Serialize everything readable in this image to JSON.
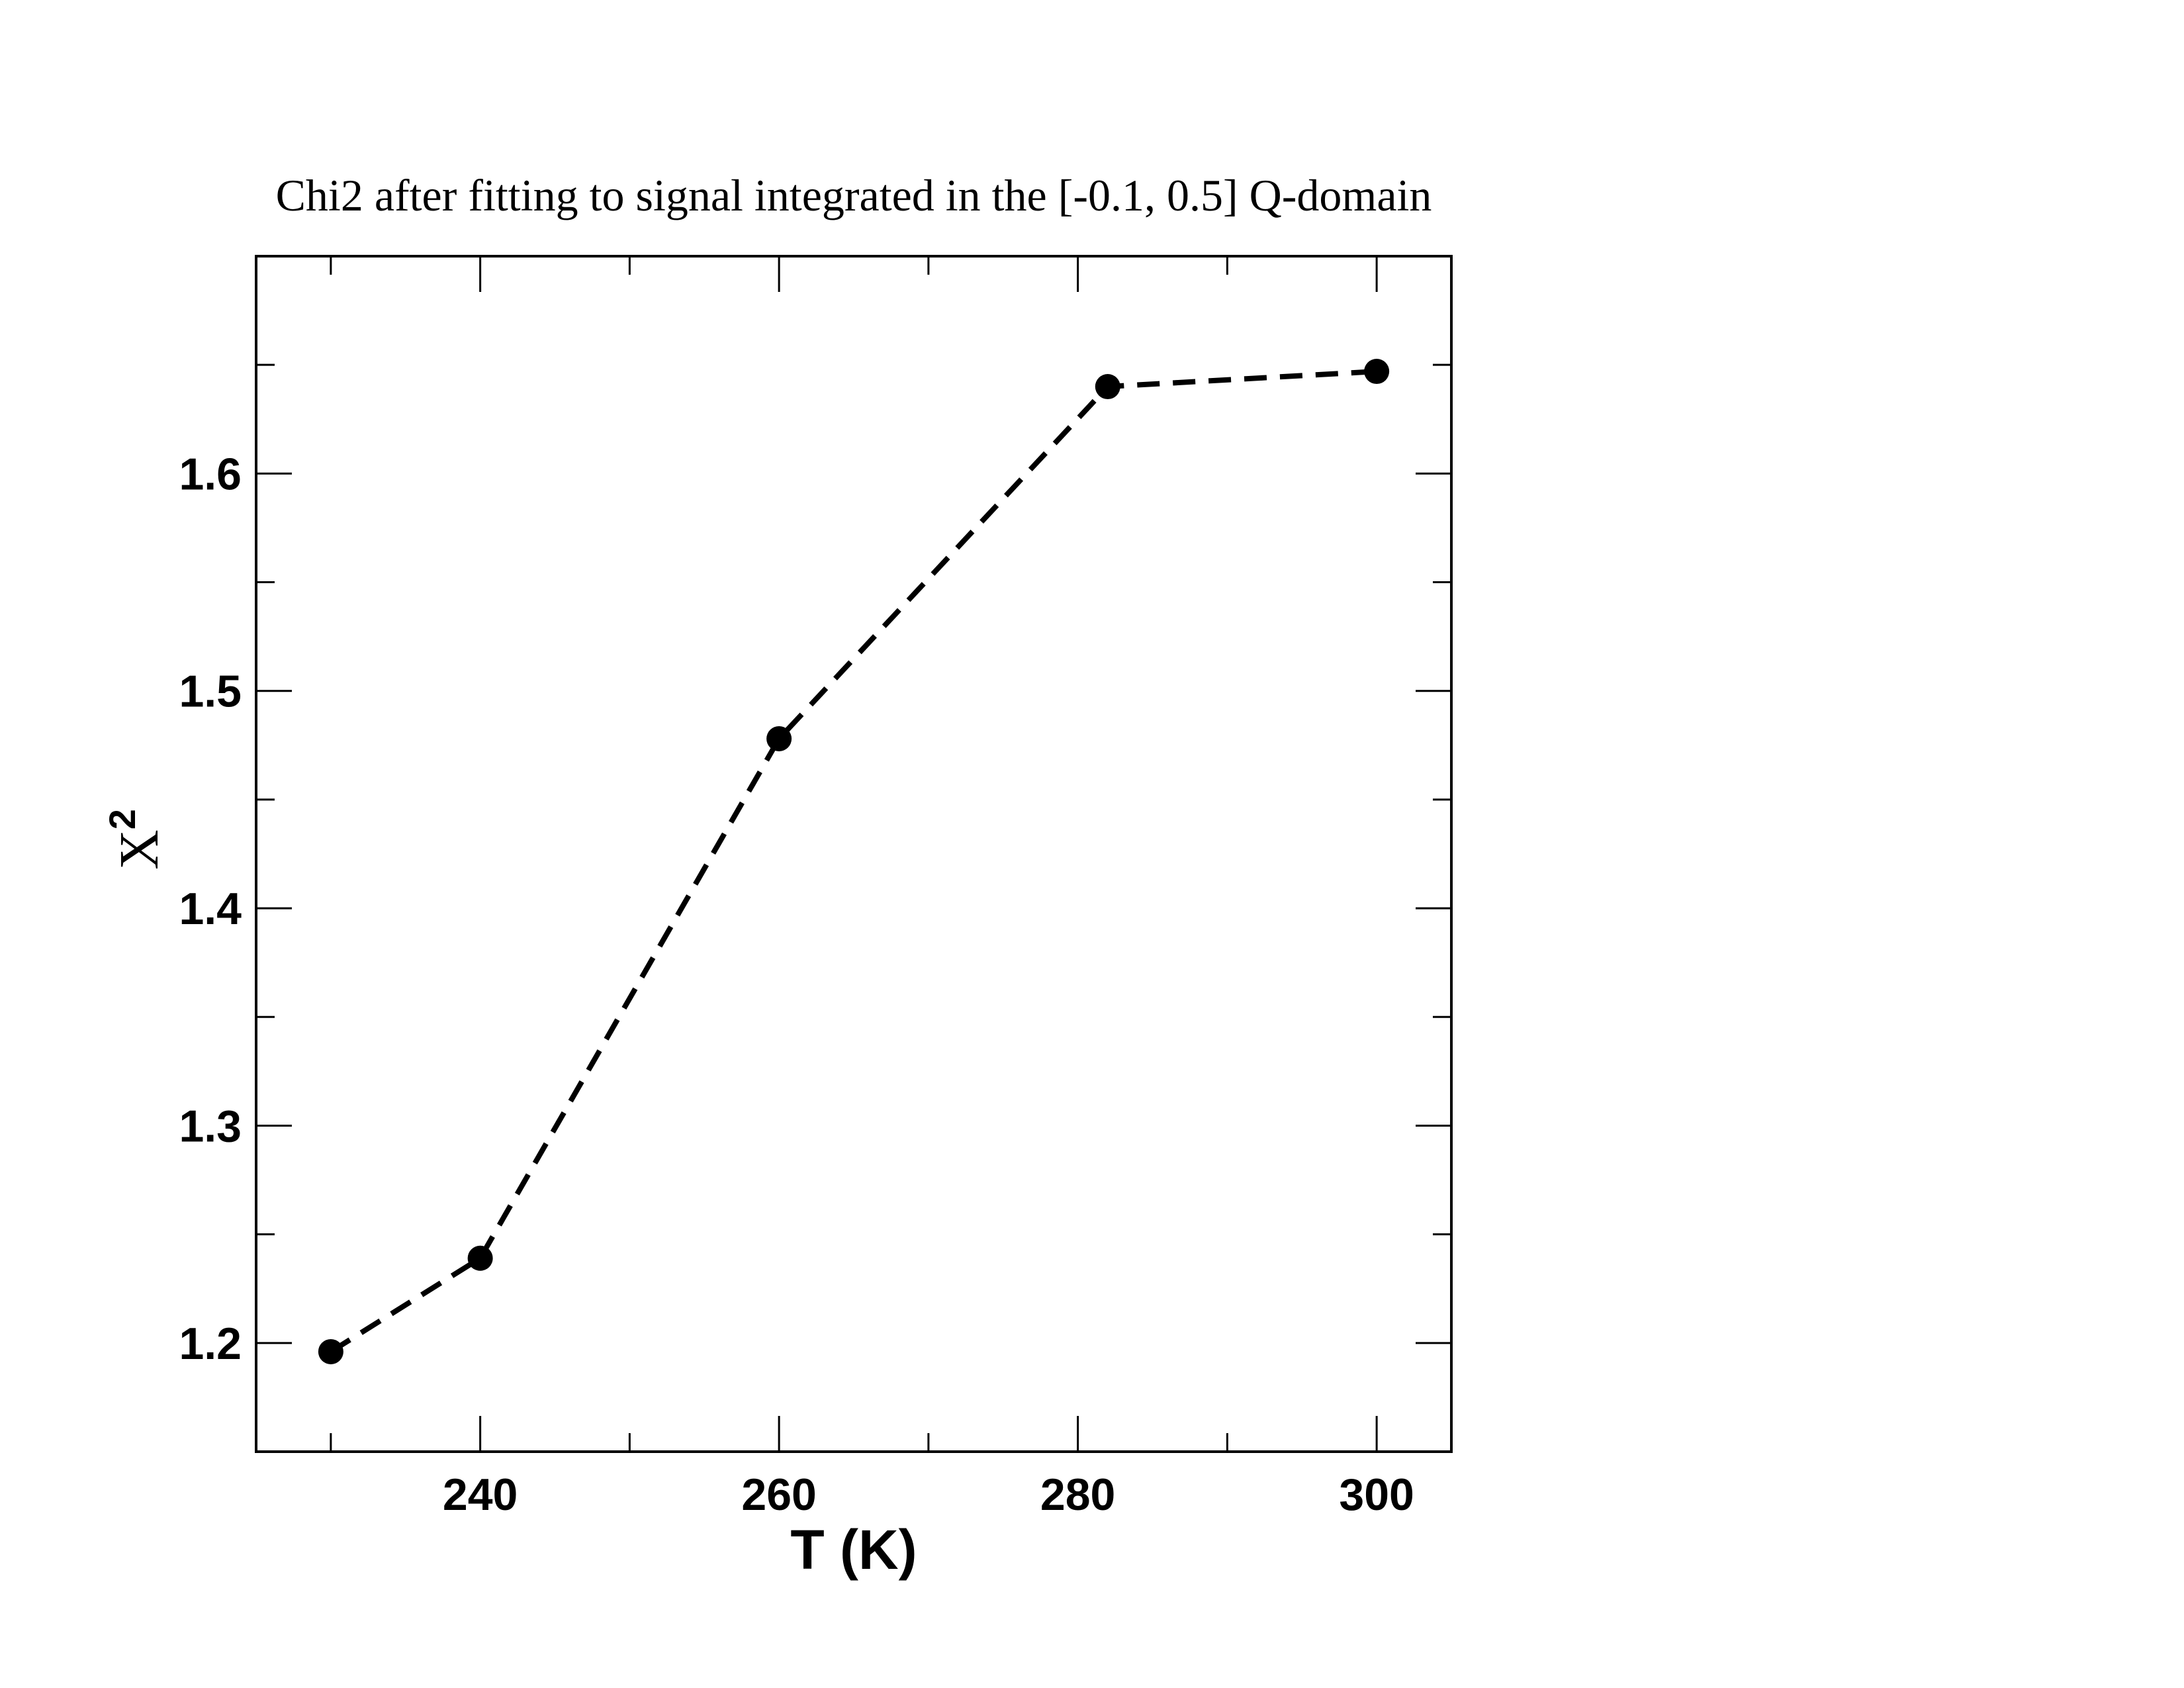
{
  "chart_data": {
    "type": "line",
    "title": "Chi2 after fitting to signal integrated in the [-0.1, 0.5] Q-domain",
    "xlabel": "T (K)",
    "ylabel": "X",
    "ylabel_superscript": "2",
    "xlim": [
      225,
      305
    ],
    "ylim": [
      1.15,
      1.7
    ],
    "x_ticks_major": [
      240,
      260,
      280,
      300
    ],
    "x_ticks_minor": [
      230,
      250,
      270,
      290
    ],
    "y_ticks_major": [
      1.2,
      1.3,
      1.4,
      1.5,
      1.6
    ],
    "y_ticks_minor": [
      1.25,
      1.35,
      1.45,
      1.55,
      1.65
    ],
    "x_tick_labels": [
      "240",
      "260",
      "280",
      "300"
    ],
    "y_tick_labels": [
      "1.2",
      "1.3",
      "1.4",
      "1.5",
      "1.6"
    ],
    "grid": false,
    "series": [
      {
        "line_style": "dashed",
        "marker": "circle",
        "color": "#000000",
        "x": [
          230,
          240,
          260,
          282,
          300
        ],
        "y": [
          1.196,
          1.239,
          1.478,
          1.64,
          1.647
        ]
      }
    ]
  }
}
